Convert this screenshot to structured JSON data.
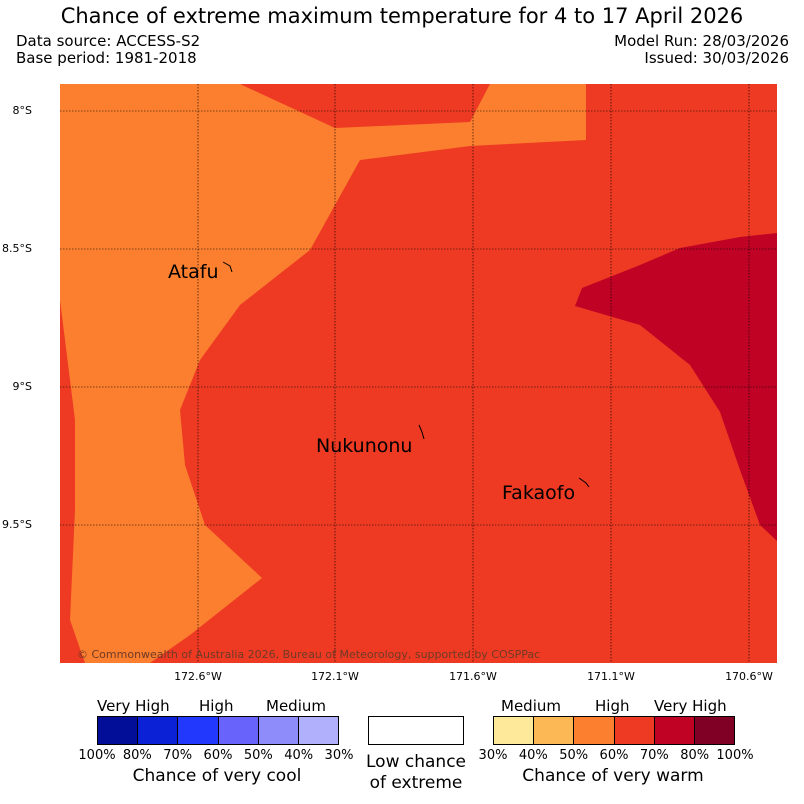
{
  "title": "Chance of extreme maximum temperature for 4 to 17 April 2026",
  "header": {
    "data_source": "Data source: ACCESS-S2",
    "base_period": "Base period: 1981-2018",
    "model_run": "Model Run: 28/03/2026",
    "issued": "Issued: 30/03/2026"
  },
  "map": {
    "lat_labels": [
      "8°S",
      "8.5°S",
      "9°S",
      "9.5°S"
    ],
    "lon_labels": [
      "172.6°W",
      "172.1°W",
      "171.6°W",
      "171.1°W",
      "170.6°W"
    ],
    "places": {
      "atafu": "Atafu",
      "nukunonu": "Nukunonu",
      "fakaofo": "Fakaofo"
    },
    "copyright": "© Commonwealth of Australia 2026, Bureau of Meteorology, supported by COSPPac",
    "region_colors": {
      "high": "#fb7f2e",
      "base": "#ee3a23",
      "very_high": "#c00225"
    }
  },
  "legend": {
    "cool": {
      "levels": [
        "Very High",
        "High",
        "Medium"
      ],
      "ticks": [
        "100%",
        "80%",
        "70%",
        "60%",
        "50%",
        "40%",
        "30%"
      ],
      "caption": "Chance of very cool",
      "colors": [
        "#020e97",
        "#0a21d5",
        "#2238fc",
        "#6864fb",
        "#8e8cfb",
        "#b1b0fc"
      ]
    },
    "low": {
      "line1": "Low chance",
      "line2": "of extreme"
    },
    "warm": {
      "levels": [
        "Medium",
        "High",
        "Very High"
      ],
      "ticks": [
        "30%",
        "40%",
        "50%",
        "60%",
        "70%",
        "80%",
        "100%"
      ],
      "caption": "Chance of very warm",
      "colors": [
        "#fee89a",
        "#fdb856",
        "#fb7f2e",
        "#ee3a23",
        "#c00225",
        "#7f0024"
      ]
    }
  }
}
